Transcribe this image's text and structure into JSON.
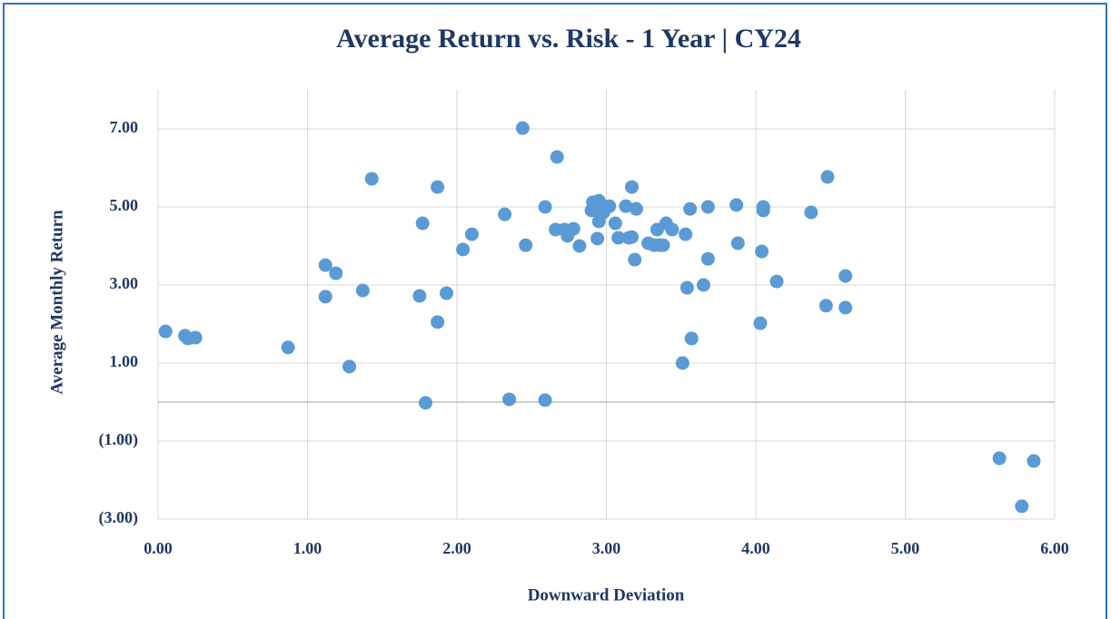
{
  "chart_data": {
    "type": "scatter",
    "title": "Average Return vs. Risk - 1 Year | CY24",
    "x_label": "Downward Deviation",
    "y_label": "Average Monthly Return",
    "color": "#5b9bd5",
    "grid": true,
    "xlim": [
      0,
      6
    ],
    "ylim": [
      -3,
      8
    ],
    "xticks": [
      {
        "value": 0,
        "label": "0.00"
      },
      {
        "value": 1,
        "label": "1.00"
      },
      {
        "value": 2,
        "label": "2.00"
      },
      {
        "value": 3,
        "label": "3.00"
      },
      {
        "value": 4,
        "label": "4.00"
      },
      {
        "value": 5,
        "label": "5.00"
      },
      {
        "value": 6,
        "label": "6.00"
      }
    ],
    "yticks": [
      {
        "value": -3,
        "label": "(3.00)"
      },
      {
        "value": -1,
        "label": "(1.00)"
      },
      {
        "value": 1,
        "label": "1.00"
      },
      {
        "value": 3,
        "label": "3.00"
      },
      {
        "value": 5,
        "label": "5.00"
      },
      {
        "value": 7,
        "label": "7.00"
      }
    ],
    "x": [
      0.05,
      0.18,
      0.2,
      0.25,
      0.87,
      1.12,
      1.12,
      1.19,
      1.28,
      1.37,
      1.43,
      1.75,
      1.77,
      1.79,
      1.87,
      1.87,
      1.93,
      2.04,
      2.1,
      2.32,
      2.35,
      2.44,
      2.46,
      2.59,
      2.59,
      2.66,
      2.67,
      2.72,
      2.74,
      2.78,
      2.82,
      2.9,
      2.91,
      2.95,
      2.94,
      2.95,
      2.98,
      2.99,
      3.02,
      3.06,
      3.08,
      3.13,
      3.15,
      3.17,
      3.17,
      3.19,
      3.2,
      3.28,
      3.32,
      3.34,
      3.36,
      3.38,
      3.4,
      3.44,
      3.51,
      3.53,
      3.54,
      3.56,
      3.57,
      3.65,
      3.68,
      3.68,
      3.87,
      3.88,
      4.03,
      4.04,
      4.05,
      4.05,
      4.14,
      4.37,
      4.47,
      4.48,
      4.6,
      4.6,
      5.63,
      5.78,
      5.86
    ],
    "y": [
      1.81,
      1.7,
      1.63,
      1.65,
      1.4,
      3.51,
      2.7,
      3.3,
      0.91,
      2.86,
      5.72,
      2.72,
      4.58,
      -0.02,
      5.51,
      2.05,
      2.79,
      3.91,
      4.3,
      4.81,
      0.07,
      7.02,
      4.02,
      5.0,
      0.05,
      4.42,
      6.28,
      4.42,
      4.26,
      4.44,
      4.0,
      4.91,
      5.12,
      5.16,
      4.19,
      4.63,
      4.86,
      4.95,
      5.02,
      4.58,
      4.21,
      5.02,
      4.21,
      4.23,
      5.51,
      3.65,
      4.95,
      4.07,
      4.02,
      4.42,
      4.02,
      4.02,
      4.58,
      4.42,
      1.0,
      4.3,
      2.93,
      4.95,
      1.63,
      3.0,
      5.0,
      3.67,
      5.05,
      4.07,
      2.02,
      3.86,
      5.0,
      4.91,
      3.09,
      4.86,
      2.47,
      5.77,
      3.23,
      2.42,
      -1.44,
      -2.67,
      -1.51
    ]
  }
}
